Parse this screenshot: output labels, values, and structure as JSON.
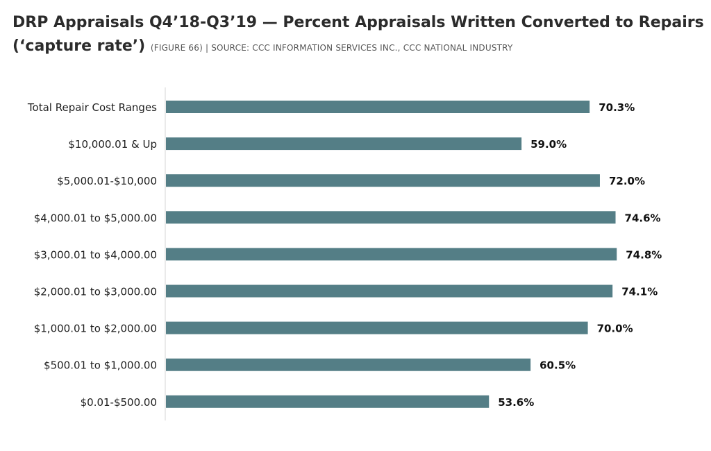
{
  "header": {
    "title_line1": "DRP Appraisals Q4’18-Q3’19 — Percent Appraisals Written Converted to Repairs",
    "title_line2": "(‘capture rate’)",
    "subtitle": "(FIGURE 66) | SOURCE: CCC INFORMATION SERVICES INC., CCC NATIONAL INDUSTRY"
  },
  "chart_data": {
    "type": "bar",
    "orientation": "horizontal",
    "title": "DRP Appraisals Q4’18-Q3’19 — Percent Appraisals Written Converted to Repairs (‘capture rate’)",
    "categories": [
      "Total Repair Cost Ranges",
      "$10,000.01 & Up",
      "$5,000.01-$10,000",
      "$4,000.01 to $5,000.00",
      "$3,000.01 to $4,000.00",
      "$2,000.01 to $3,000.00",
      "$1,000.01 to $2,000.00",
      "$500.01 to $1,000.00",
      "$0.01-$500.00"
    ],
    "values": [
      70.3,
      59.0,
      72.0,
      74.6,
      74.8,
      74.1,
      70.0,
      60.5,
      53.6
    ],
    "value_labels": [
      "70.3%",
      "59.0%",
      "72.0%",
      "74.6%",
      "74.8%",
      "74.1%",
      "70.0%",
      "60.5%",
      "53.6%"
    ],
    "xlim": [
      0,
      80
    ],
    "grid": false,
    "bar_color": "#547e86"
  }
}
